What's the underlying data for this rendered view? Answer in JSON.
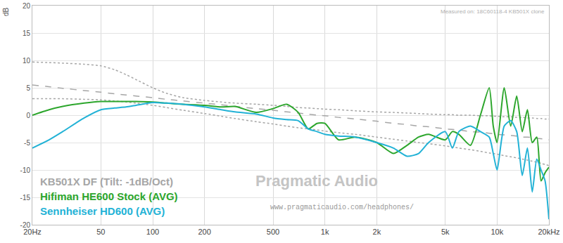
{
  "chart_data": {
    "type": "line",
    "ylabel": "dB",
    "annotations": [
      "Pragmatic Audio",
      "Measured on: 18C60118-4 KB501X clone",
      "www.pragmaticaudio.com/headphones/"
    ],
    "log": "x",
    "grid": true,
    "legend": "bottom left",
    "xlim": [
      20,
      20000
    ],
    "xticks": [
      {
        "value": 20,
        "label": "20Hz"
      },
      50,
      100,
      200,
      500,
      {
        "value": 1000,
        "label": "1k"
      },
      {
        "value": 2000,
        "label": "2k"
      },
      {
        "value": 5000,
        "label": "5k"
      },
      {
        "value": 10000,
        "label": "10k"
      },
      {
        "value": 20000,
        "label": "20kHz"
      }
    ],
    "ylim": [
      -20,
      20
    ],
    "yticks": [
      -20,
      -15,
      -10,
      -5,
      0,
      5,
      10,
      15,
      20
    ],
    "x": [
      20,
      25,
      30,
      40,
      50,
      60,
      70,
      80,
      100,
      120,
      150,
      200,
      250,
      300,
      400,
      500,
      600,
      700,
      800,
      900,
      1000,
      1200,
      1500,
      2000,
      2500,
      3000,
      3500,
      4000,
      5000,
      5500,
      6000,
      7000,
      8000,
      9000,
      9500,
      10000,
      11000,
      12000,
      13000,
      14000,
      15000,
      16000,
      17000,
      18000,
      19000,
      20000
    ],
    "series": [
      {
        "name": "KB501X DF (Tilt: -1dB/Oct)",
        "color": "#a6a6a6",
        "line_style": "dashed",
        "values": [
          5.5,
          5.2,
          4.9,
          4.5,
          4.2,
          3.9,
          3.7,
          3.5,
          3.2,
          2.9,
          2.6,
          2.2,
          1.9,
          1.6,
          1.2,
          0.9,
          0.6,
          0.4,
          0.2,
          0,
          -0.1,
          -0.4,
          -0.7,
          -1.1,
          -1.5,
          -1.7,
          -2,
          -2.1,
          -2.5,
          -2.6,
          -2.7,
          -3,
          -3.1,
          -3.3,
          -3.4,
          -3.5,
          -3.6,
          -3.7,
          -3.8,
          -4,
          -4,
          -4.1,
          -4.2,
          -4.3,
          -4.4,
          -4.5
        ]
      },
      {
        "color": "#a6a6a6",
        "line_style": "dotted",
        "values": [
          9.7,
          9.6,
          9.5,
          9.3,
          9,
          8.3,
          7.4,
          6.5,
          5,
          4,
          3.2,
          2.7,
          2.4,
          2.2,
          2,
          1.8,
          1.6,
          1.4,
          1.3,
          1.2,
          1.1,
          1,
          0.8,
          0.6,
          0.5,
          0.4,
          0.3,
          0.2,
          0.1,
          0.1,
          0,
          0,
          -0.1,
          -0.1,
          -0.2,
          -0.2,
          -0.3,
          -0.3,
          -0.4,
          -0.4,
          -0.5,
          -0.5,
          -0.6,
          -0.6,
          -0.7,
          -0.7
        ]
      },
      {
        "color": "#a6a6a6",
        "line_style": "dotted",
        "values": [
          3,
          3,
          3,
          2.9,
          2.8,
          2.6,
          2.4,
          2.2,
          1.8,
          1.4,
          0.9,
          0.3,
          -0.2,
          -0.6,
          -1.2,
          -1.6,
          -2,
          -2.3,
          -2.5,
          -2.7,
          -2.9,
          -3.2,
          -3.5,
          -4,
          -4.4,
          -4.7,
          -5,
          -5.2,
          -5.6,
          -5.8,
          -6,
          -6.3,
          -6.6,
          -6.9,
          -7,
          -7.1,
          -7.4,
          -7.6,
          -7.8,
          -8,
          -8.2,
          -8.4,
          -8.6,
          -8.8,
          -9,
          -9.2
        ]
      },
      {
        "name": "Hifiman HE600 Stock (AVG)",
        "color": "#2ca62c",
        "line_style": "solid",
        "values": [
          0,
          1,
          1.6,
          2.2,
          2.5,
          2.5,
          2.5,
          2.5,
          2.4,
          2.2,
          2,
          1.8,
          1.5,
          1.6,
          0.5,
          1.2,
          2,
          0.5,
          -2.5,
          -1.5,
          -1.5,
          -4.5,
          -4,
          -5,
          -7,
          -5.5,
          -4,
          -3.5,
          -4.5,
          -3,
          -3.5,
          -5.5,
          0,
          5,
          -2,
          -5,
          5,
          -2,
          3.5,
          -3,
          1,
          -5,
          -4,
          -12,
          -10.5,
          -9.5
        ]
      },
      {
        "name": "Sennheiser HD600 (AVG)",
        "color": "#22b2d6",
        "line_style": "solid",
        "values": [
          -6,
          -4.5,
          -3,
          -0.5,
          1,
          1.3,
          1.5,
          1.8,
          2.3,
          2.2,
          2,
          1.5,
          1,
          0.6,
          0.2,
          -0.5,
          -0.8,
          -1,
          -2.5,
          -3,
          -3.5,
          -3.8,
          -4,
          -5,
          -6,
          -7.5,
          -7,
          -5,
          -3,
          -6,
          -3,
          -2,
          -3,
          -4,
          -7,
          -10,
          -2,
          -1,
          -3,
          -11,
          -6,
          -14,
          -8,
          -10,
          -12,
          -19
        ]
      }
    ]
  }
}
